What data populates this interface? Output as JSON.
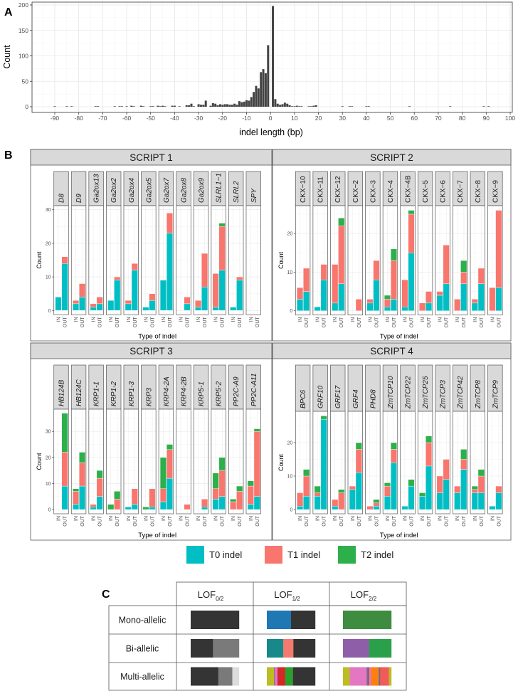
{
  "panel_labels": {
    "a": "A",
    "b": "B",
    "c": "C"
  },
  "chart_data": [
    {
      "panel": "A",
      "type": "bar",
      "title": "",
      "xlabel": "indel length (bp)",
      "ylabel": "Count",
      "xlim": [
        -100,
        100
      ],
      "ylim": [
        0,
        200
      ],
      "xticks": [
        -90,
        -80,
        -70,
        -60,
        -50,
        -40,
        -30,
        -20,
        -10,
        0,
        10,
        20,
        30,
        40,
        50,
        60,
        70,
        80,
        90,
        100
      ],
      "yticks": [
        0,
        50,
        100,
        150,
        200
      ],
      "grid": true,
      "bar_color": "#444444",
      "x": [
        -90,
        -85,
        -83,
        -73,
        -72,
        -65,
        -63,
        -62,
        -60,
        -58,
        -57,
        -54,
        -53,
        -50,
        -49,
        -47,
        -46,
        -45,
        -44,
        -41,
        -40,
        -38,
        -35,
        -34,
        -33,
        -32,
        -30,
        -29,
        -28,
        -27,
        -25,
        -24,
        -23,
        -22,
        -21,
        -20,
        -19,
        -18,
        -17,
        -16,
        -15,
        -14,
        -13,
        -12,
        -11,
        -10,
        -9,
        -8,
        -7,
        -6,
        -5,
        -4,
        -3,
        -2,
        -1,
        1,
        2,
        3,
        4,
        5,
        6,
        7,
        8,
        9,
        10,
        11,
        12,
        13,
        16,
        17,
        18,
        19,
        30,
        33,
        34,
        40,
        41,
        58,
        75,
        89,
        91
      ],
      "values": [
        1,
        1,
        1,
        1,
        1,
        1,
        1,
        1,
        1,
        2,
        1,
        2,
        1,
        1,
        1,
        2,
        1,
        2,
        1,
        2,
        2,
        1,
        3,
        3,
        6,
        1,
        5,
        4,
        4,
        12,
        2,
        7,
        6,
        3,
        5,
        4,
        5,
        5,
        4,
        4,
        6,
        4,
        11,
        9,
        10,
        13,
        12,
        19,
        29,
        41,
        36,
        68,
        74,
        66,
        121,
        198,
        15,
        6,
        4,
        5,
        8,
        6,
        3,
        1,
        1,
        2,
        1,
        1,
        1,
        1,
        2,
        3,
        1,
        1,
        1,
        1,
        1,
        1,
        1,
        1,
        1
      ]
    },
    {
      "panel": "B",
      "type": "bar",
      "stacked": true,
      "xlabel": "Type of indel",
      "ylabel": "Count",
      "categories": [
        "IN",
        "OUT"
      ],
      "legend": [
        {
          "label": "T0 indel",
          "color": "#00BFC4"
        },
        {
          "label": "T1 indel",
          "color": "#F8766D"
        },
        {
          "label": "T2 indel",
          "color": "#2DB04B"
        }
      ],
      "legend_position": "bottom",
      "facets": [
        {
          "title": "SCRIPT 1",
          "italic": true,
          "yticks": [
            0,
            10,
            20,
            30
          ],
          "ylim": [
            0,
            31
          ],
          "genes": [
            {
              "name": "D8",
              "IN": [
                4,
                0,
                0
              ],
              "OUT": [
                14,
                2,
                0
              ]
            },
            {
              "name": "D9",
              "IN": [
                2,
                1,
                0
              ],
              "OUT": [
                4,
                4,
                0
              ]
            },
            {
              "name": "Ga2ox13",
              "IN": [
                1,
                1,
                0
              ],
              "OUT": [
                2,
                2,
                0
              ]
            },
            {
              "name": "Ga2ox2",
              "IN": [
                3,
                0,
                0
              ],
              "OUT": [
                9,
                1,
                0
              ]
            },
            {
              "name": "Ga2ox4",
              "IN": [
                2,
                1,
                0
              ],
              "OUT": [
                12,
                2,
                0
              ]
            },
            {
              "name": "Ga2ox5",
              "IN": [
                1,
                0,
                0
              ],
              "OUT": [
                3,
                2,
                0
              ]
            },
            {
              "name": "Ga2ox7",
              "IN": [
                9,
                0,
                0
              ],
              "OUT": [
                23,
                6,
                0
              ]
            },
            {
              "name": "Ga2ox8",
              "IN": [
                0,
                0,
                0
              ],
              "OUT": [
                2,
                2,
                0
              ]
            },
            {
              "name": "Ga2ox9",
              "IN": [
                1,
                2,
                0
              ],
              "OUT": [
                7,
                10,
                0
              ]
            },
            {
              "name": "SLRL1−1",
              "IN": [
                1,
                10,
                0
              ],
              "OUT": [
                12,
                13,
                1
              ]
            },
            {
              "name": "SLRL2",
              "IN": [
                1,
                0,
                0
              ],
              "OUT": [
                9,
                1,
                0
              ]
            },
            {
              "name": "SPY",
              "IN": [
                0,
                0,
                0
              ],
              "OUT": [
                0,
                0,
                0
              ]
            }
          ]
        },
        {
          "title": "SCRIPT 2",
          "italic": false,
          "yticks": [
            0,
            10,
            20
          ],
          "ylim": [
            0,
            27
          ],
          "genes": [
            {
              "name": "CKX−10",
              "IN": [
                3,
                3,
                0
              ],
              "OUT": [
                5,
                6,
                0
              ]
            },
            {
              "name": "CKX−11",
              "IN": [
                1,
                0,
                0
              ],
              "OUT": [
                8,
                4,
                0
              ]
            },
            {
              "name": "CKX−12",
              "IN": [
                2,
                10,
                0
              ],
              "OUT": [
                7,
                15,
                2
              ]
            },
            {
              "name": "CKX−2",
              "IN": [
                0,
                0,
                0
              ],
              "OUT": [
                0,
                3,
                0
              ]
            },
            {
              "name": "CKX−3",
              "IN": [
                2,
                1,
                0
              ],
              "OUT": [
                8,
                5,
                0
              ]
            },
            {
              "name": "CKX−4",
              "IN": [
                1,
                2,
                1
              ],
              "OUT": [
                3,
                10,
                3
              ]
            },
            {
              "name": "CKX−4B",
              "IN": [
                1,
                7,
                0
              ],
              "OUT": [
                15,
                10,
                1
              ]
            },
            {
              "name": "CKX−5",
              "IN": [
                0,
                2,
                0
              ],
              "OUT": [
                2,
                3,
                0
              ]
            },
            {
              "name": "CKX−6",
              "IN": [
                4,
                1,
                0
              ],
              "OUT": [
                7,
                10,
                0
              ]
            },
            {
              "name": "CKX−7",
              "IN": [
                0,
                3,
                0
              ],
              "OUT": [
                7,
                3,
                3
              ]
            },
            {
              "name": "CKX−8",
              "IN": [
                2,
                1,
                0
              ],
              "OUT": [
                7,
                4,
                0
              ]
            },
            {
              "name": "CKX−9",
              "IN": [
                0,
                6,
                0
              ],
              "OUT": [
                6,
                20,
                0
              ]
            }
          ]
        },
        {
          "title": "SCRIPT 3",
          "italic": true,
          "yticks": [
            0,
            10,
            20,
            30
          ],
          "ylim": [
            0,
            39
          ],
          "genes": [
            {
              "name": "HB124B",
              "IN": [
                0,
                0,
                0
              ],
              "OUT": [
                9,
                13,
                15
              ]
            },
            {
              "name": "HB124C",
              "IN": [
                2,
                5,
                1
              ],
              "OUT": [
                9,
                9,
                4
              ]
            },
            {
              "name": "KRP1-1",
              "IN": [
                1,
                1,
                0
              ],
              "OUT": [
                5,
                7,
                3
              ]
            },
            {
              "name": "KRP1-2",
              "IN": [
                0,
                0,
                2
              ],
              "OUT": [
                0,
                4,
                3
              ]
            },
            {
              "name": "KRP1-3",
              "IN": [
                1,
                0,
                0
              ],
              "OUT": [
                2,
                6,
                0
              ]
            },
            {
              "name": "KRP3",
              "IN": [
                0,
                0,
                1
              ],
              "OUT": [
                1,
                7,
                0
              ]
            },
            {
              "name": "KRP4-2A",
              "IN": [
                3,
                5,
                12
              ],
              "OUT": [
                12,
                11,
                2
              ]
            },
            {
              "name": "KRP4-2B",
              "IN": [
                0,
                0,
                0
              ],
              "OUT": [
                0,
                2,
                0
              ]
            },
            {
              "name": "KRP5-1",
              "IN": [
                0,
                0,
                0
              ],
              "OUT": [
                1,
                3,
                0
              ]
            },
            {
              "name": "KRP5-2",
              "IN": [
                4,
                4,
                6
              ],
              "OUT": [
                5,
                10,
                5
              ]
            },
            {
              "name": "PP2C-A9",
              "IN": [
                0,
                3,
                1
              ],
              "OUT": [
                0,
                7,
                2
              ]
            },
            {
              "name": "PP2C-A11",
              "IN": [
                2,
                7,
                2
              ],
              "OUT": [
                5,
                25,
                1
              ]
            }
          ]
        },
        {
          "title": "SCRIPT 4",
          "italic": true,
          "yticks": [
            0,
            10,
            20
          ],
          "ylim": [
            0,
            29
          ],
          "genes": [
            {
              "name": "BPC6",
              "IN": [
                1,
                4,
                0
              ],
              "OUT": [
                4,
                6,
                2
              ]
            },
            {
              "name": "GRF10",
              "IN": [
                4,
                1,
                2
              ],
              "OUT": [
                27,
                0,
                1
              ]
            },
            {
              "name": "GRF17",
              "IN": [
                1,
                2,
                0
              ],
              "OUT": [
                0,
                5,
                1
              ]
            },
            {
              "name": "GRF4",
              "IN": [
                6,
                1,
                0
              ],
              "OUT": [
                11,
                7,
                2
              ]
            },
            {
              "name": "PHD8",
              "IN": [
                0,
                1,
                0
              ],
              "OUT": [
                1,
                1,
                1
              ]
            },
            {
              "name": "ZmTCP10",
              "IN": [
                4,
                3,
                1
              ],
              "OUT": [
                14,
                4,
                2
              ]
            },
            {
              "name": "ZmTCP22",
              "IN": [
                1,
                0,
                0
              ],
              "OUT": [
                7,
                0,
                2
              ]
            },
            {
              "name": "ZmTCP25",
              "IN": [
                4,
                0,
                1
              ],
              "OUT": [
                13,
                7,
                2
              ]
            },
            {
              "name": "ZmTCP3",
              "IN": [
                5,
                5,
                0
              ],
              "OUT": [
                9,
                6,
                0
              ]
            },
            {
              "name": "ZmTCP42",
              "IN": [
                5,
                2,
                0
              ],
              "OUT": [
                12,
                3,
                3
              ]
            },
            {
              "name": "ZmTCP8",
              "IN": [
                5,
                1,
                1
              ],
              "OUT": [
                5,
                5,
                2
              ]
            },
            {
              "name": "ZmTCP9",
              "IN": [
                1,
                0,
                0
              ],
              "OUT": [
                5,
                2,
                0
              ]
            }
          ]
        }
      ]
    },
    {
      "panel": "C",
      "type": "table",
      "columns": [
        {
          "main": "LOF",
          "sub": "0/2"
        },
        {
          "main": "LOF",
          "sub": "1/2"
        },
        {
          "main": "LOF",
          "sub": "2/2"
        }
      ],
      "rows": [
        {
          "label": "Mono-allelic",
          "cells": [
            [
              {
                "f": 1,
                "c": "#343434"
              }
            ],
            [
              {
                "f": 0.5,
                "c": "#1F77B4"
              },
              {
                "f": 0.5,
                "c": "#343434"
              }
            ],
            [
              {
                "f": 1,
                "c": "#3D8C40"
              }
            ]
          ]
        },
        {
          "label": "Bi-allelic",
          "cells": [
            [
              {
                "f": 0.46,
                "c": "#343434"
              },
              {
                "f": 0.54,
                "c": "#7A7A7A"
              }
            ],
            [
              {
                "f": 0.34,
                "c": "#17898A"
              },
              {
                "f": 0.21,
                "c": "#F4796E"
              },
              {
                "f": 0.45,
                "c": "#343434"
              }
            ],
            [
              {
                "f": 0.54,
                "c": "#8E5EA8"
              },
              {
                "f": 0.46,
                "c": "#2AA04A"
              }
            ]
          ]
        },
        {
          "label": "Multi-allelic",
          "cells": [
            [
              {
                "f": 0.57,
                "c": "#343434"
              },
              {
                "f": 0.29,
                "c": "#7A7A7A"
              },
              {
                "f": 0.14,
                "c": "#DCDCDC"
              }
            ],
            [
              {
                "f": 0.15,
                "c": "#BCBD22"
              },
              {
                "f": 0.02,
                "c": "#8E5EA8"
              },
              {
                "f": 0.05,
                "c": "#E377C2"
              },
              {
                "f": 0.16,
                "c": "#D62728"
              },
              {
                "f": 0.16,
                "c": "#2CA02C"
              },
              {
                "f": 0.46,
                "c": "#343434"
              }
            ],
            [
              {
                "f": 0.14,
                "c": "#BCBD22"
              },
              {
                "f": 0.35,
                "c": "#E377C2"
              },
              {
                "f": 0.03,
                "c": "#7F6A8A"
              },
              {
                "f": 0.02,
                "c": "#8C564B"
              },
              {
                "f": 0.04,
                "c": "#E377C2"
              },
              {
                "f": 0.16,
                "c": "#FF7F0E"
              },
              {
                "f": 0.03,
                "c": "#6A6A9A"
              },
              {
                "f": 0.18,
                "c": "#F25A5A"
              },
              {
                "f": 0.05,
                "c": "#BCBD22"
              }
            ]
          ]
        }
      ]
    }
  ]
}
